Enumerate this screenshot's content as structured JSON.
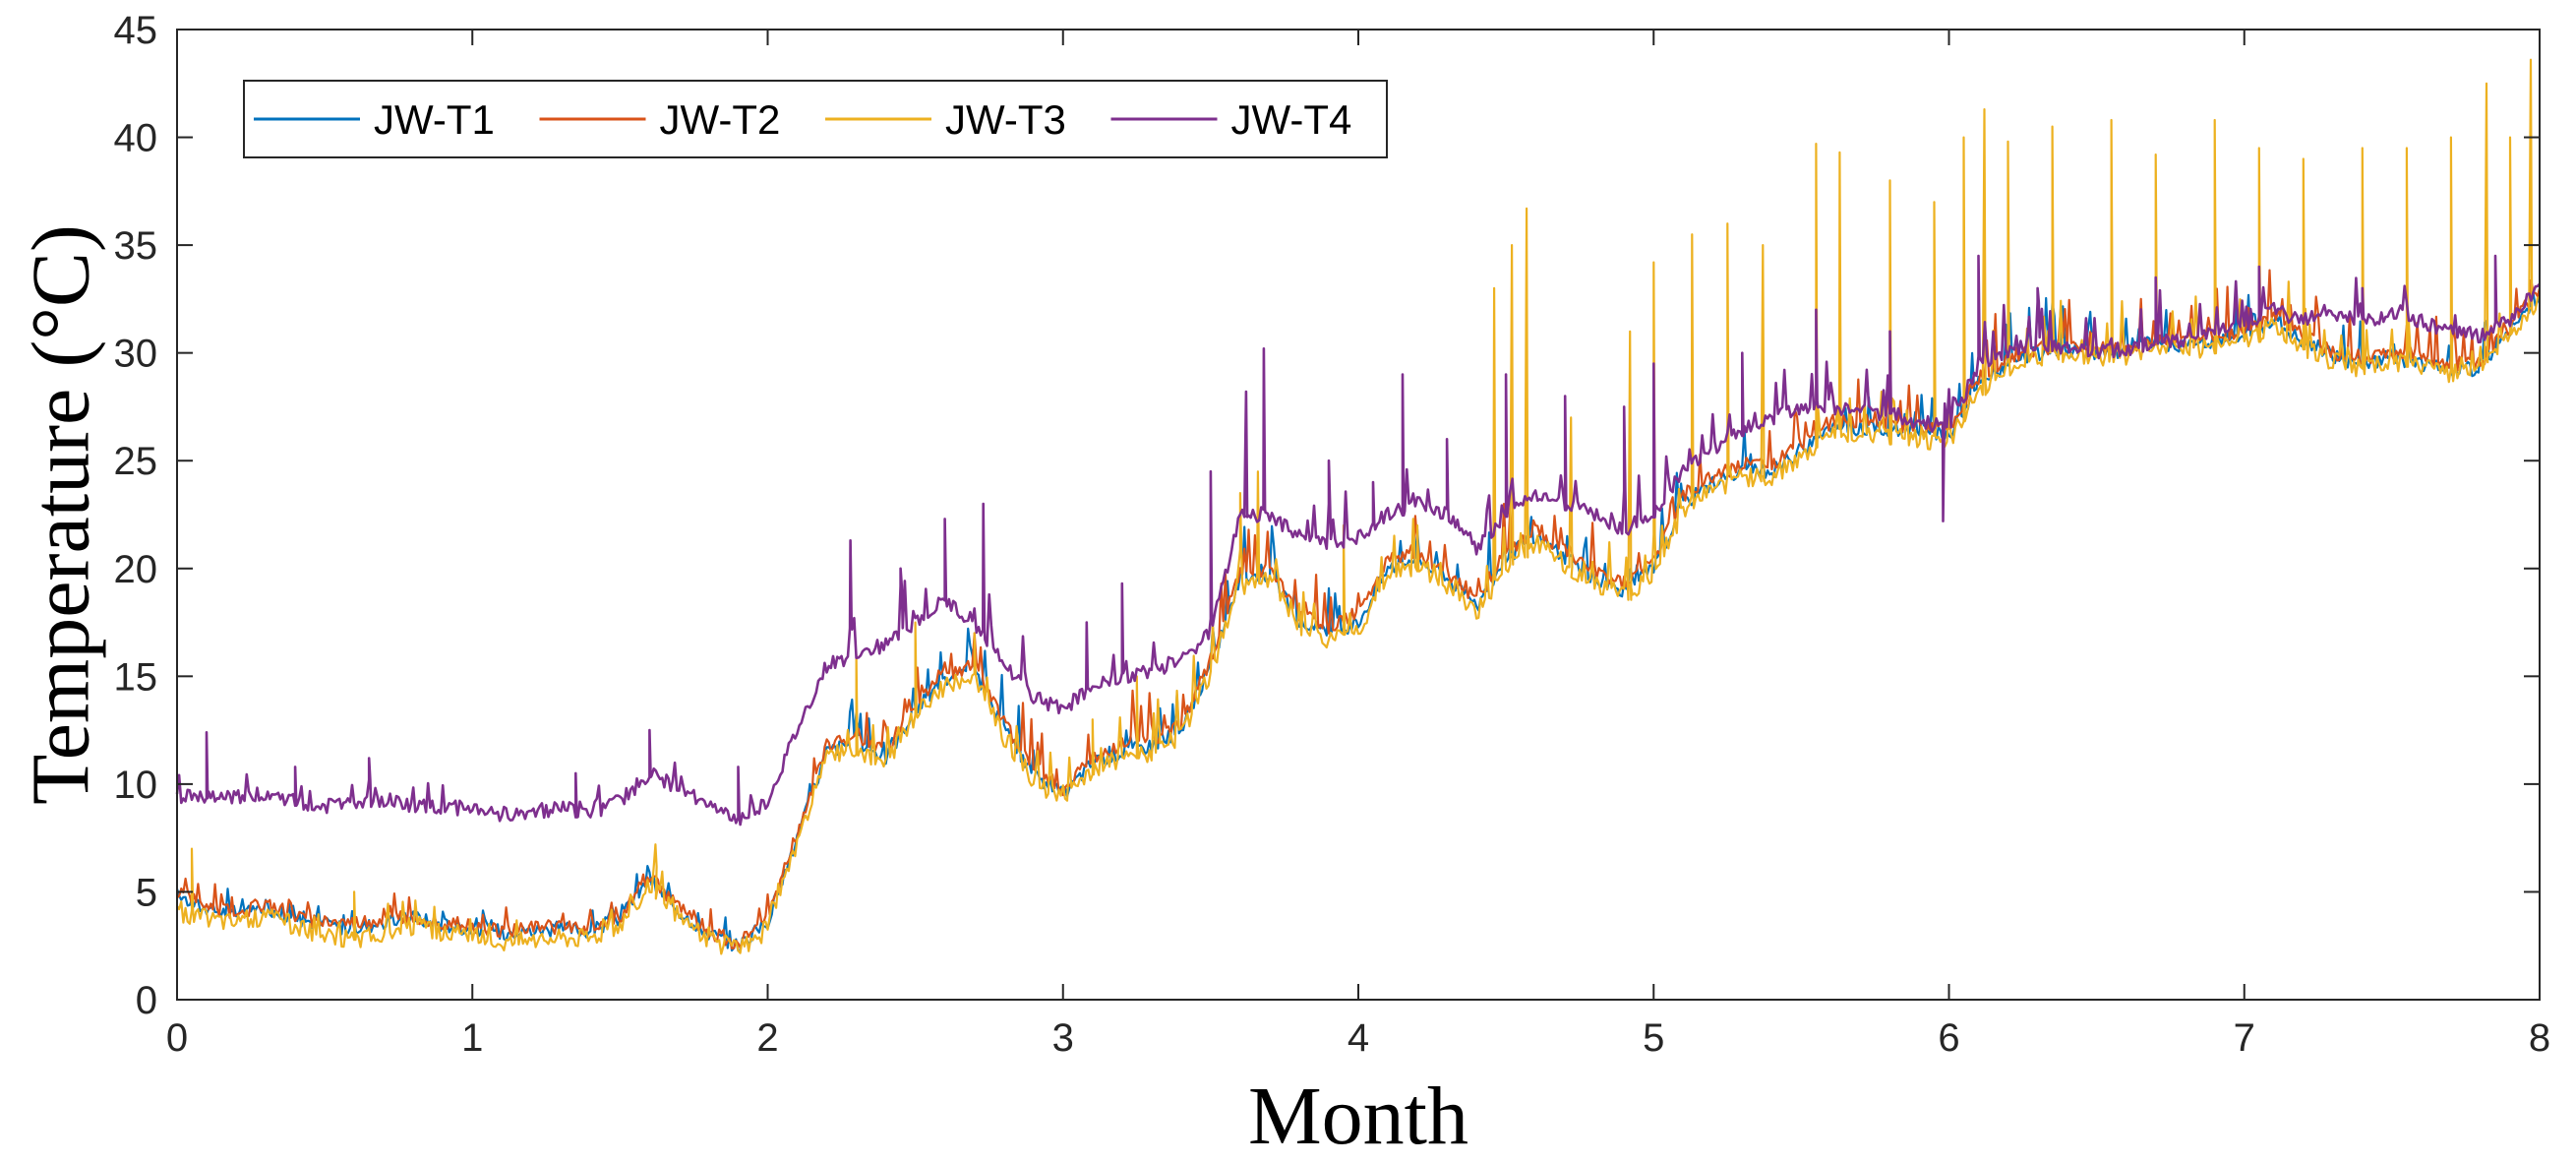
{
  "chart_data": {
    "type": "line",
    "title": "",
    "xlabel": "Month",
    "ylabel": "Temperature (°C)",
    "xlim": [
      0,
      8
    ],
    "ylim": [
      0,
      45
    ],
    "xticks": [
      0,
      1,
      2,
      3,
      4,
      5,
      6,
      7,
      8
    ],
    "yticks": [
      0,
      5,
      10,
      15,
      20,
      25,
      30,
      35,
      40,
      45
    ],
    "grid": false,
    "legend_position": "top-left",
    "series": [
      {
        "name": "JW-T1",
        "color": "#0072BD",
        "x": [
          0,
          0.1,
          0.2,
          0.3,
          0.4,
          0.5,
          0.6,
          0.7,
          0.8,
          0.9,
          1.0,
          1.1,
          1.2,
          1.3,
          1.4,
          1.5,
          1.6,
          1.7,
          1.8,
          1.9,
          2.0,
          2.1,
          2.2,
          2.3,
          2.4,
          2.5,
          2.6,
          2.7,
          2.8,
          2.9,
          3.0,
          3.1,
          3.2,
          3.3,
          3.4,
          3.5,
          3.6,
          3.7,
          3.8,
          3.9,
          4.0,
          4.1,
          4.2,
          4.3,
          4.4,
          4.5,
          4.6,
          4.7,
          4.8,
          4.9,
          5.0,
          5.1,
          5.2,
          5.3,
          5.4,
          5.5,
          5.6,
          5.7,
          5.8,
          5.9,
          6.0,
          6.1,
          6.2,
          6.3,
          6.4,
          6.5,
          6.6,
          6.7,
          6.8,
          6.9,
          7.0,
          7.1,
          7.2,
          7.3,
          7.4,
          7.5,
          7.6,
          7.7,
          7.8,
          7.9,
          8.0
        ],
        "values": [
          4.8,
          4.2,
          4.0,
          4.3,
          3.8,
          3.5,
          3.3,
          3.6,
          3.8,
          3.5,
          3.3,
          3.1,
          3.2,
          3.3,
          3.2,
          3.8,
          5.6,
          4.1,
          3.1,
          2.5,
          3.6,
          7.5,
          11.5,
          12.0,
          11.2,
          13.5,
          14.8,
          15.2,
          12.5,
          10.5,
          9.5,
          11.0,
          11.5,
          11.8,
          12.5,
          15.5,
          19.5,
          19.8,
          17.5,
          17.0,
          17.5,
          20.0,
          20.5,
          19.5,
          18.2,
          20.5,
          21.5,
          20.5,
          19.5,
          19.0,
          20.0,
          23.0,
          24.0,
          24.5,
          24.5,
          25.5,
          26.5,
          26.5,
          26.5,
          26.3,
          26.2,
          28.5,
          29.5,
          30.0,
          30.2,
          30.0,
          30.0,
          30.5,
          30.3,
          30.5,
          30.8,
          31.5,
          30.5,
          29.8,
          29.5,
          29.8,
          29.5,
          29.2,
          29.3,
          31.0,
          32.8
        ]
      },
      {
        "name": "JW-T2",
        "color": "#D95319",
        "x": [
          0,
          0.1,
          0.2,
          0.3,
          0.4,
          0.5,
          0.6,
          0.7,
          0.8,
          0.9,
          1.0,
          1.1,
          1.2,
          1.3,
          1.4,
          1.5,
          1.6,
          1.7,
          1.8,
          1.9,
          2.0,
          2.1,
          2.2,
          2.3,
          2.4,
          2.5,
          2.6,
          2.7,
          2.8,
          2.9,
          3.0,
          3.1,
          3.2,
          3.3,
          3.4,
          3.5,
          3.6,
          3.7,
          3.8,
          3.9,
          4.0,
          4.1,
          4.2,
          4.3,
          4.4,
          4.5,
          4.6,
          4.7,
          4.8,
          4.9,
          5.0,
          5.1,
          5.2,
          5.3,
          5.4,
          5.5,
          5.6,
          5.7,
          5.8,
          5.9,
          6.0,
          6.1,
          6.2,
          6.3,
          6.4,
          6.5,
          6.6,
          6.7,
          6.8,
          6.9,
          7.0,
          7.1,
          7.2,
          7.3,
          7.4,
          7.5,
          7.6,
          7.7,
          7.8,
          7.9,
          8.0
        ],
        "values": [
          5.0,
          4.3,
          4.1,
          4.4,
          3.9,
          3.6,
          3.5,
          3.7,
          3.9,
          3.6,
          3.4,
          3.2,
          3.3,
          3.4,
          3.3,
          3.9,
          5.8,
          4.2,
          3.2,
          2.6,
          3.8,
          7.8,
          11.8,
          12.3,
          11.5,
          13.8,
          15.0,
          15.5,
          12.8,
          10.8,
          9.8,
          11.2,
          11.8,
          12.0,
          12.8,
          15.8,
          19.8,
          20.0,
          17.8,
          17.3,
          17.8,
          20.3,
          20.8,
          19.8,
          18.5,
          20.8,
          21.8,
          20.8,
          19.8,
          19.3,
          20.3,
          23.3,
          24.3,
          24.8,
          24.8,
          25.8,
          26.8,
          26.8,
          26.8,
          26.5,
          26.4,
          28.8,
          29.8,
          30.2,
          30.4,
          30.2,
          30.2,
          30.7,
          30.5,
          30.8,
          31.0,
          31.8,
          30.8,
          30.0,
          29.8,
          30.0,
          29.8,
          29.5,
          29.6,
          31.2,
          33.0
        ]
      },
      {
        "name": "JW-T3",
        "color": "#EDB120",
        "x": [
          0,
          0.1,
          0.2,
          0.3,
          0.4,
          0.5,
          0.6,
          0.7,
          0.8,
          0.9,
          1.0,
          1.1,
          1.2,
          1.3,
          1.4,
          1.5,
          1.6,
          1.7,
          1.8,
          1.9,
          2.0,
          2.1,
          2.2,
          2.3,
          2.4,
          2.5,
          2.6,
          2.7,
          2.8,
          2.9,
          3.0,
          3.1,
          3.2,
          3.3,
          3.4,
          3.5,
          3.6,
          3.7,
          3.8,
          3.9,
          4.0,
          4.1,
          4.2,
          4.3,
          4.4,
          4.5,
          4.6,
          4.7,
          4.8,
          4.9,
          5.0,
          5.1,
          5.2,
          5.3,
          5.4,
          5.5,
          5.6,
          5.7,
          5.8,
          5.9,
          6.0,
          6.1,
          6.2,
          6.3,
          6.4,
          6.5,
          6.6,
          6.7,
          6.8,
          6.9,
          7.0,
          7.1,
          7.2,
          7.3,
          7.4,
          7.5,
          7.6,
          7.7,
          7.8,
          7.9,
          8.0
        ],
        "values": [
          4.0,
          3.8,
          3.6,
          3.9,
          3.4,
          3.0,
          2.8,
          3.1,
          3.4,
          3.1,
          2.9,
          2.7,
          2.8,
          2.9,
          2.9,
          3.5,
          5.3,
          3.8,
          2.8,
          2.2,
          3.3,
          7.2,
          11.2,
          11.7,
          10.9,
          13.2,
          14.5,
          14.9,
          12.2,
          10.2,
          9.2,
          10.7,
          11.2,
          11.5,
          12.2,
          15.2,
          19.2,
          19.5,
          17.2,
          16.7,
          17.2,
          19.7,
          20.2,
          19.2,
          17.9,
          20.2,
          21.2,
          20.2,
          19.2,
          18.7,
          19.7,
          22.7,
          23.7,
          24.2,
          24.2,
          25.2,
          26.2,
          26.2,
          26.2,
          26.0,
          25.9,
          28.3,
          29.3,
          29.8,
          30.0,
          29.8,
          29.8,
          30.3,
          30.1,
          30.3,
          30.6,
          31.3,
          30.3,
          29.6,
          29.3,
          29.6,
          29.3,
          29.0,
          29.1,
          30.8,
          32.6
        ],
        "spikes": [
          [
            0.05,
            7.0
          ],
          [
            0.6,
            5.0
          ],
          [
            1.62,
            7.2
          ],
          [
            2.15,
            14.0
          ],
          [
            2.3,
            16.0
          ],
          [
            2.5,
            17.5
          ],
          [
            2.7,
            17.0
          ],
          [
            3.1,
            13.0
          ],
          [
            3.25,
            15.0
          ],
          [
            3.6,
            23.5
          ],
          [
            3.66,
            24.5
          ],
          [
            3.95,
            22.0
          ],
          [
            4.2,
            22.0
          ],
          [
            4.46,
            33.0
          ],
          [
            4.52,
            35.0
          ],
          [
            4.57,
            36.7
          ],
          [
            4.72,
            27.0
          ],
          [
            4.92,
            31.0
          ],
          [
            5.0,
            34.2
          ],
          [
            5.13,
            35.5
          ],
          [
            5.25,
            36.0
          ],
          [
            5.37,
            35.0
          ],
          [
            5.55,
            39.7
          ],
          [
            5.63,
            39.3
          ],
          [
            5.8,
            38.0
          ],
          [
            5.95,
            37.0
          ],
          [
            6.05,
            40.0
          ],
          [
            6.12,
            41.3
          ],
          [
            6.2,
            39.8
          ],
          [
            6.35,
            40.5
          ],
          [
            6.55,
            40.8
          ],
          [
            6.7,
            39.2
          ],
          [
            6.9,
            40.8
          ],
          [
            7.05,
            39.5
          ],
          [
            7.2,
            39.0
          ],
          [
            7.4,
            39.5
          ],
          [
            7.55,
            39.5
          ],
          [
            7.7,
            40.0
          ],
          [
            7.82,
            42.5
          ],
          [
            7.9,
            40.0
          ],
          [
            7.97,
            43.6
          ]
        ]
      },
      {
        "name": "JW-T4",
        "color": "#7E2F8E",
        "x": [
          0,
          0.1,
          0.2,
          0.3,
          0.4,
          0.5,
          0.6,
          0.7,
          0.8,
          0.9,
          1.0,
          1.1,
          1.2,
          1.3,
          1.4,
          1.5,
          1.6,
          1.7,
          1.8,
          1.9,
          2.0,
          2.1,
          2.2,
          2.3,
          2.4,
          2.5,
          2.6,
          2.7,
          2.8,
          2.9,
          3.0,
          3.1,
          3.2,
          3.3,
          3.4,
          3.5,
          3.6,
          3.7,
          3.8,
          3.9,
          4.0,
          4.1,
          4.2,
          4.3,
          4.4,
          4.5,
          4.6,
          4.7,
          4.8,
          4.9,
          5.0,
          5.1,
          5.2,
          5.3,
          5.4,
          5.5,
          5.6,
          5.7,
          5.8,
          5.9,
          6.0,
          6.1,
          6.2,
          6.3,
          6.4,
          6.5,
          6.6,
          6.7,
          6.8,
          6.9,
          7.0,
          7.1,
          7.2,
          7.3,
          7.4,
          7.5,
          7.6,
          7.7,
          7.8,
          7.9,
          8.0
        ],
        "values": [
          9.5,
          9.3,
          9.4,
          9.6,
          9.2,
          9.0,
          9.1,
          9.3,
          9.0,
          8.9,
          8.9,
          8.6,
          8.7,
          8.9,
          8.7,
          9.2,
          10.5,
          9.8,
          9.0,
          8.3,
          9.2,
          12.5,
          15.5,
          16.0,
          16.5,
          17.5,
          18.5,
          17.5,
          15.5,
          14.0,
          13.5,
          14.5,
          15.0,
          15.2,
          15.8,
          17.0,
          22.5,
          22.5,
          21.5,
          21.0,
          21.5,
          22.5,
          23.0,
          22.5,
          21.0,
          22.5,
          23.5,
          23.0,
          22.5,
          21.8,
          22.5,
          24.5,
          25.5,
          26.5,
          27.0,
          27.5,
          27.5,
          27.3,
          27.2,
          26.8,
          26.5,
          29.5,
          30.0,
          30.5,
          30.2,
          30.0,
          30.2,
          30.5,
          30.5,
          31.0,
          31.2,
          32.0,
          31.5,
          31.8,
          31.5,
          31.8,
          31.5,
          31.0,
          30.8,
          31.5,
          33.2
        ],
        "spikes": [
          [
            0.1,
            12.4
          ],
          [
            0.4,
            10.8
          ],
          [
            0.65,
            11.2
          ],
          [
            1.35,
            10.5
          ],
          [
            1.6,
            12.5
          ],
          [
            1.9,
            10.8
          ],
          [
            2.15,
            17.5
          ],
          [
            2.28,
            21.3
          ],
          [
            2.45,
            20.0
          ],
          [
            2.6,
            22.3
          ],
          [
            2.73,
            23.0
          ],
          [
            3.08,
            17.5
          ],
          [
            3.2,
            19.3
          ],
          [
            3.5,
            24.5
          ],
          [
            3.62,
            28.2
          ],
          [
            3.68,
            30.2
          ],
          [
            3.9,
            25.0
          ],
          [
            4.05,
            24.0
          ],
          [
            4.15,
            29.0
          ],
          [
            4.3,
            26.0
          ],
          [
            4.5,
            29.0
          ],
          [
            4.7,
            28.0
          ],
          [
            4.9,
            27.5
          ],
          [
            5.0,
            29.5
          ],
          [
            5.3,
            30.0
          ],
          [
            5.55,
            32.0
          ],
          [
            5.8,
            31.0
          ],
          [
            5.98,
            22.2
          ],
          [
            6.1,
            34.5
          ],
          [
            6.3,
            33.0
          ],
          [
            6.7,
            33.5
          ],
          [
            7.05,
            34.0
          ],
          [
            7.4,
            33.0
          ],
          [
            7.85,
            34.5
          ],
          [
            8.0,
            35.2
          ]
        ]
      }
    ]
  }
}
